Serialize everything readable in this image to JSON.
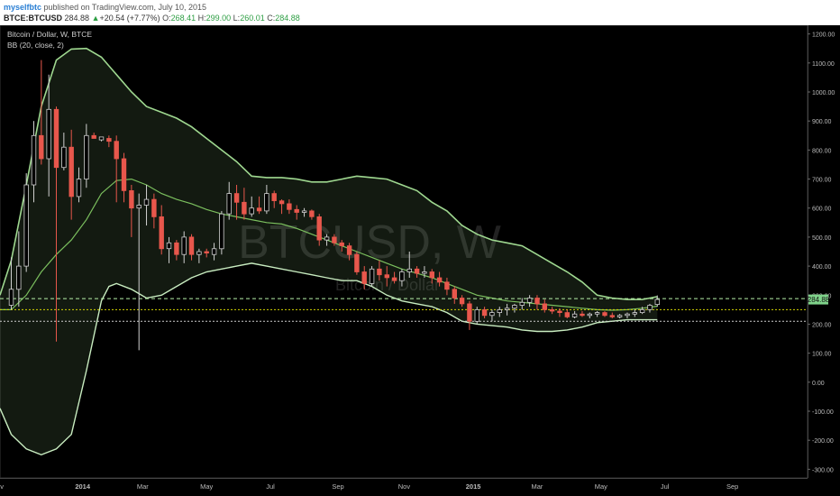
{
  "header": {
    "username": "myselfbtc",
    "published_text": "published on TradingView.com, July 10, 2015",
    "symbol": "BTCE:BTCUSD",
    "last_price": "284.88",
    "change_arrow": "▲",
    "change": "+20.54 (+7.77%)",
    "open_label": "O:",
    "open": "268.41",
    "high_label": "H:",
    "high": "299.00",
    "low_label": "L:",
    "low": "260.01",
    "close_label": "C:",
    "close": "284.88"
  },
  "chart_data": {
    "type": "candlestick",
    "title": "Bitcoin / Dollar, W, BTCE",
    "indicator_label": "BB (20, close, 2)",
    "watermark_symbol": "BTCUSD, W",
    "watermark_name": "Bitcoin / Dollar",
    "price_tag": "284.88",
    "ylim": [
      -330,
      1230
    ],
    "y_ticks": [
      "1200.00",
      "1100.00",
      "1000.00",
      "900.00",
      "800.00",
      "700.00",
      "600.00",
      "500.00",
      "400.00",
      "300.00",
      "200.00",
      "100.00",
      "0.00",
      "-100.00",
      "-200.00",
      "-300.00"
    ],
    "y_tick_values": [
      1200,
      1100,
      1000,
      900,
      800,
      700,
      600,
      500,
      400,
      300,
      200,
      100,
      0,
      -100,
      -200,
      -300
    ],
    "x_ticks": [
      {
        "label": "ov",
        "week": -1.5
      },
      {
        "label": "2014",
        "week": 9.5
      },
      {
        "label": "Mar",
        "week": 17.5
      },
      {
        "label": "May",
        "week": 26
      },
      {
        "label": "Jul",
        "week": 34.5
      },
      {
        "label": "Sep",
        "week": 43.5
      },
      {
        "label": "Nov",
        "week": 52.3
      },
      {
        "label": "2015",
        "week": 61.5
      },
      {
        "label": "Mar",
        "week": 70
      },
      {
        "label": "May",
        "week": 78.5
      },
      {
        "label": "Jul",
        "week": 87
      },
      {
        "label": "Sep",
        "week": 96
      }
    ],
    "x_range": [
      -1.5,
      106
    ],
    "horizontal_lines": [
      {
        "value": 288,
        "color": "#b6f0a8",
        "style": "dashed"
      },
      {
        "value": 250,
        "color": "#d4d400",
        "style": "dotted"
      },
      {
        "value": 210,
        "color": "#cccccc",
        "style": "dotted"
      }
    ],
    "colors": {
      "up": "#d0d0d0",
      "down": "#e8574c",
      "band": "#9fd890",
      "basis": "#7bbf5e",
      "band_fill": "rgba(150,200,130,0.13)",
      "background": "#000000",
      "axis_text": "#bbbbbb"
    },
    "candles": [
      {
        "w": 0,
        "o": 265,
        "h": 430,
        "l": 250,
        "c": 320
      },
      {
        "w": 1,
        "o": 320,
        "h": 520,
        "l": 260,
        "c": 400
      },
      {
        "w": 2,
        "o": 400,
        "h": 720,
        "l": 380,
        "c": 680
      },
      {
        "w": 3,
        "o": 680,
        "h": 900,
        "l": 620,
        "c": 850
      },
      {
        "w": 4,
        "o": 850,
        "h": 1110,
        "l": 750,
        "c": 770
      },
      {
        "w": 5,
        "o": 770,
        "h": 1060,
        "l": 640,
        "c": 940
      },
      {
        "w": 6,
        "o": 940,
        "h": 950,
        "l": 140,
        "c": 740
      },
      {
        "w": 7,
        "o": 740,
        "h": 860,
        "l": 730,
        "c": 810
      },
      {
        "w": 8,
        "o": 810,
        "h": 870,
        "l": 560,
        "c": 640
      },
      {
        "w": 9,
        "o": 640,
        "h": 740,
        "l": 620,
        "c": 700
      },
      {
        "w": 10,
        "o": 700,
        "h": 890,
        "l": 670,
        "c": 850
      },
      {
        "w": 11,
        "o": 850,
        "h": 860,
        "l": 840,
        "c": 840
      },
      {
        "w": 12,
        "o": 835,
        "h": 840,
        "l": 830,
        "c": 845
      },
      {
        "w": 13,
        "o": 840,
        "h": 850,
        "l": 810,
        "c": 830
      },
      {
        "w": 14,
        "o": 830,
        "h": 850,
        "l": 620,
        "c": 770
      },
      {
        "w": 15,
        "o": 770,
        "h": 790,
        "l": 620,
        "c": 660
      },
      {
        "w": 16,
        "o": 660,
        "h": 680,
        "l": 500,
        "c": 600
      },
      {
        "w": 17,
        "o": 600,
        "h": 650,
        "l": 110,
        "c": 610
      },
      {
        "w": 18,
        "o": 610,
        "h": 680,
        "l": 540,
        "c": 630
      },
      {
        "w": 19,
        "o": 630,
        "h": 650,
        "l": 530,
        "c": 570
      },
      {
        "w": 20,
        "o": 570,
        "h": 610,
        "l": 440,
        "c": 460
      },
      {
        "w": 21,
        "o": 460,
        "h": 500,
        "l": 410,
        "c": 480
      },
      {
        "w": 22,
        "o": 480,
        "h": 490,
        "l": 420,
        "c": 440
      },
      {
        "w": 23,
        "o": 440,
        "h": 520,
        "l": 410,
        "c": 500
      },
      {
        "w": 24,
        "o": 500,
        "h": 510,
        "l": 420,
        "c": 440
      },
      {
        "w": 25,
        "o": 440,
        "h": 460,
        "l": 410,
        "c": 450
      },
      {
        "w": 26,
        "o": 450,
        "h": 460,
        "l": 430,
        "c": 445
      },
      {
        "w": 27,
        "o": 440,
        "h": 480,
        "l": 420,
        "c": 460
      },
      {
        "w": 28,
        "o": 460,
        "h": 590,
        "l": 440,
        "c": 580
      },
      {
        "w": 29,
        "o": 580,
        "h": 690,
        "l": 560,
        "c": 650
      },
      {
        "w": 30,
        "o": 650,
        "h": 680,
        "l": 560,
        "c": 620
      },
      {
        "w": 31,
        "o": 620,
        "h": 670,
        "l": 560,
        "c": 580
      },
      {
        "w": 32,
        "o": 580,
        "h": 640,
        "l": 570,
        "c": 600
      },
      {
        "w": 33,
        "o": 600,
        "h": 640,
        "l": 580,
        "c": 590
      },
      {
        "w": 34,
        "o": 590,
        "h": 680,
        "l": 580,
        "c": 650
      },
      {
        "w": 35,
        "o": 650,
        "h": 660,
        "l": 600,
        "c": 625
      },
      {
        "w": 36,
        "o": 625,
        "h": 630,
        "l": 580,
        "c": 615
      },
      {
        "w": 37,
        "o": 615,
        "h": 630,
        "l": 580,
        "c": 595
      },
      {
        "w": 38,
        "o": 595,
        "h": 610,
        "l": 560,
        "c": 585
      },
      {
        "w": 39,
        "o": 585,
        "h": 600,
        "l": 570,
        "c": 590
      },
      {
        "w": 40,
        "o": 590,
        "h": 595,
        "l": 560,
        "c": 570
      },
      {
        "w": 41,
        "o": 570,
        "h": 580,
        "l": 470,
        "c": 490
      },
      {
        "w": 42,
        "o": 490,
        "h": 510,
        "l": 470,
        "c": 500
      },
      {
        "w": 43,
        "o": 500,
        "h": 510,
        "l": 470,
        "c": 480
      },
      {
        "w": 44,
        "o": 480,
        "h": 490,
        "l": 450,
        "c": 470
      },
      {
        "w": 45,
        "o": 470,
        "h": 480,
        "l": 420,
        "c": 440
      },
      {
        "w": 46,
        "o": 440,
        "h": 450,
        "l": 370,
        "c": 380
      },
      {
        "w": 47,
        "o": 380,
        "h": 400,
        "l": 320,
        "c": 340
      },
      {
        "w": 48,
        "o": 340,
        "h": 400,
        "l": 330,
        "c": 390
      },
      {
        "w": 49,
        "o": 390,
        "h": 420,
        "l": 350,
        "c": 370
      },
      {
        "w": 50,
        "o": 370,
        "h": 400,
        "l": 330,
        "c": 360
      },
      {
        "w": 51,
        "o": 360,
        "h": 380,
        "l": 340,
        "c": 350
      },
      {
        "w": 52,
        "o": 350,
        "h": 390,
        "l": 330,
        "c": 380
      },
      {
        "w": 53,
        "o": 380,
        "h": 450,
        "l": 360,
        "c": 390
      },
      {
        "w": 54,
        "o": 390,
        "h": 400,
        "l": 360,
        "c": 375
      },
      {
        "w": 55,
        "o": 375,
        "h": 400,
        "l": 360,
        "c": 380
      },
      {
        "w": 56,
        "o": 380,
        "h": 390,
        "l": 340,
        "c": 360
      },
      {
        "w": 57,
        "o": 360,
        "h": 380,
        "l": 330,
        "c": 345
      },
      {
        "w": 58,
        "o": 345,
        "h": 360,
        "l": 300,
        "c": 320
      },
      {
        "w": 59,
        "o": 320,
        "h": 330,
        "l": 270,
        "c": 290
      },
      {
        "w": 60,
        "o": 290,
        "h": 300,
        "l": 260,
        "c": 270
      },
      {
        "w": 61,
        "o": 270,
        "h": 280,
        "l": 180,
        "c": 210
      },
      {
        "w": 62,
        "o": 210,
        "h": 260,
        "l": 200,
        "c": 250
      },
      {
        "w": 63,
        "o": 250,
        "h": 260,
        "l": 220,
        "c": 230
      },
      {
        "w": 64,
        "o": 230,
        "h": 250,
        "l": 210,
        "c": 240
      },
      {
        "w": 65,
        "o": 240,
        "h": 260,
        "l": 225,
        "c": 250
      },
      {
        "w": 66,
        "o": 250,
        "h": 270,
        "l": 230,
        "c": 255
      },
      {
        "w": 67,
        "o": 255,
        "h": 270,
        "l": 240,
        "c": 265
      },
      {
        "w": 68,
        "o": 265,
        "h": 290,
        "l": 250,
        "c": 275
      },
      {
        "w": 69,
        "o": 275,
        "h": 300,
        "l": 260,
        "c": 290
      },
      {
        "w": 70,
        "o": 290,
        "h": 300,
        "l": 250,
        "c": 270
      },
      {
        "w": 71,
        "o": 270,
        "h": 285,
        "l": 240,
        "c": 250
      },
      {
        "w": 72,
        "o": 250,
        "h": 260,
        "l": 235,
        "c": 245
      },
      {
        "w": 73,
        "o": 245,
        "h": 255,
        "l": 225,
        "c": 240
      },
      {
        "w": 74,
        "o": 240,
        "h": 250,
        "l": 220,
        "c": 225
      },
      {
        "w": 75,
        "o": 225,
        "h": 245,
        "l": 220,
        "c": 235
      },
      {
        "w": 76,
        "o": 235,
        "h": 245,
        "l": 225,
        "c": 230
      },
      {
        "w": 77,
        "o": 230,
        "h": 240,
        "l": 220,
        "c": 235
      },
      {
        "w": 78,
        "o": 235,
        "h": 245,
        "l": 225,
        "c": 240
      },
      {
        "w": 79,
        "o": 240,
        "h": 245,
        "l": 225,
        "c": 230
      },
      {
        "w": 80,
        "o": 230,
        "h": 240,
        "l": 220,
        "c": 225
      },
      {
        "w": 81,
        "o": 225,
        "h": 235,
        "l": 220,
        "c": 230
      },
      {
        "w": 82,
        "o": 230,
        "h": 240,
        "l": 220,
        "c": 235
      },
      {
        "w": 83,
        "o": 235,
        "h": 250,
        "l": 225,
        "c": 240
      },
      {
        "w": 84,
        "o": 240,
        "h": 260,
        "l": 235,
        "c": 250
      },
      {
        "w": 85,
        "o": 250,
        "h": 270,
        "l": 240,
        "c": 265
      },
      {
        "w": 86,
        "o": 268,
        "h": 299,
        "l": 260,
        "c": 285
      }
    ],
    "bb_upper": [
      [
        -1.5,
        300
      ],
      [
        0,
        420
      ],
      [
        2,
        680
      ],
      [
        4,
        950
      ],
      [
        6,
        1110
      ],
      [
        8,
        1148
      ],
      [
        10,
        1150
      ],
      [
        12,
        1120
      ],
      [
        14,
        1060
      ],
      [
        16,
        1000
      ],
      [
        18,
        950
      ],
      [
        20,
        930
      ],
      [
        22,
        910
      ],
      [
        24,
        880
      ],
      [
        26,
        840
      ],
      [
        28,
        800
      ],
      [
        30,
        760
      ],
      [
        32,
        710
      ],
      [
        34,
        705
      ],
      [
        36,
        705
      ],
      [
        38,
        700
      ],
      [
        40,
        690
      ],
      [
        42,
        690
      ],
      [
        44,
        700
      ],
      [
        46,
        710
      ],
      [
        48,
        705
      ],
      [
        50,
        700
      ],
      [
        52,
        680
      ],
      [
        54,
        660
      ],
      [
        56,
        620
      ],
      [
        58,
        590
      ],
      [
        60,
        540
      ],
      [
        62,
        510
      ],
      [
        64,
        490
      ],
      [
        66,
        480
      ],
      [
        68,
        470
      ],
      [
        70,
        440
      ],
      [
        72,
        410
      ],
      [
        74,
        380
      ],
      [
        76,
        345
      ],
      [
        78,
        300
      ],
      [
        80,
        290
      ],
      [
        82,
        285
      ],
      [
        84,
        285
      ],
      [
        86,
        295
      ]
    ],
    "bb_lower": [
      [
        -1.5,
        -90
      ],
      [
        0,
        -180
      ],
      [
        2,
        -230
      ],
      [
        4,
        -250
      ],
      [
        6,
        -230
      ],
      [
        8,
        -180
      ],
      [
        10,
        40
      ],
      [
        12,
        280
      ],
      [
        13,
        330
      ],
      [
        14,
        340
      ],
      [
        16,
        320
      ],
      [
        18,
        290
      ],
      [
        20,
        300
      ],
      [
        22,
        330
      ],
      [
        24,
        360
      ],
      [
        26,
        380
      ],
      [
        28,
        390
      ],
      [
        30,
        400
      ],
      [
        32,
        410
      ],
      [
        34,
        400
      ],
      [
        36,
        390
      ],
      [
        38,
        380
      ],
      [
        40,
        370
      ],
      [
        42,
        360
      ],
      [
        44,
        350
      ],
      [
        46,
        350
      ],
      [
        48,
        330
      ],
      [
        50,
        300
      ],
      [
        52,
        280
      ],
      [
        54,
        270
      ],
      [
        56,
        260
      ],
      [
        58,
        240
      ],
      [
        60,
        210
      ],
      [
        62,
        200
      ],
      [
        64,
        195
      ],
      [
        66,
        190
      ],
      [
        68,
        180
      ],
      [
        70,
        175
      ],
      [
        72,
        175
      ],
      [
        74,
        180
      ],
      [
        76,
        190
      ],
      [
        78,
        205
      ],
      [
        80,
        210
      ],
      [
        82,
        215
      ],
      [
        84,
        215
      ],
      [
        86,
        215
      ]
    ],
    "bb_basis": [
      [
        -1.5,
        250
      ],
      [
        0,
        250
      ],
      [
        2,
        300
      ],
      [
        4,
        380
      ],
      [
        6,
        440
      ],
      [
        8,
        490
      ],
      [
        10,
        560
      ],
      [
        12,
        650
      ],
      [
        14,
        695
      ],
      [
        16,
        700
      ],
      [
        18,
        680
      ],
      [
        20,
        650
      ],
      [
        22,
        630
      ],
      [
        24,
        615
      ],
      [
        26,
        595
      ],
      [
        28,
        580
      ],
      [
        30,
        570
      ],
      [
        32,
        560
      ],
      [
        34,
        550
      ],
      [
        36,
        545
      ],
      [
        38,
        530
      ],
      [
        40,
        510
      ],
      [
        42,
        490
      ],
      [
        44,
        470
      ],
      [
        46,
        450
      ],
      [
        48,
        430
      ],
      [
        50,
        410
      ],
      [
        52,
        390
      ],
      [
        54,
        375
      ],
      [
        56,
        360
      ],
      [
        58,
        340
      ],
      [
        60,
        320
      ],
      [
        62,
        300
      ],
      [
        64,
        290
      ],
      [
        66,
        280
      ],
      [
        68,
        275
      ],
      [
        70,
        270
      ],
      [
        72,
        265
      ],
      [
        74,
        260
      ],
      [
        76,
        255
      ],
      [
        78,
        250
      ],
      [
        80,
        248
      ],
      [
        82,
        250
      ],
      [
        84,
        255
      ],
      [
        86,
        262
      ]
    ]
  }
}
